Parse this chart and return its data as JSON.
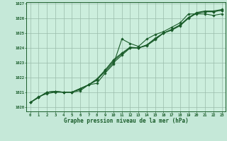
{
  "title": "Graphe pression niveau de la mer (hPa)",
  "background_color": "#c5e8d8",
  "plot_bg_color": "#cceedd",
  "grid_color": "#99bbaa",
  "line_color": "#1a5c2a",
  "marker_color": "#1a5c2a",
  "xlim": [
    -0.5,
    23.5
  ],
  "ylim": [
    1019.7,
    1027.1
  ],
  "yticks": [
    1020,
    1021,
    1022,
    1023,
    1024,
    1025,
    1026,
    1027
  ],
  "xticks": [
    0,
    1,
    2,
    3,
    4,
    5,
    6,
    7,
    8,
    9,
    10,
    11,
    12,
    13,
    14,
    15,
    16,
    17,
    18,
    19,
    20,
    21,
    22,
    23
  ],
  "series1": [
    1020.3,
    1020.7,
    1020.9,
    1021.0,
    1021.0,
    1021.0,
    1021.1,
    1021.5,
    1021.6,
    1022.3,
    1022.9,
    1024.6,
    1024.3,
    1024.1,
    1024.6,
    1024.9,
    1025.1,
    1025.4,
    1025.7,
    1026.3,
    1026.3,
    1026.3,
    1026.2,
    1026.3
  ],
  "series2": [
    1020.3,
    1020.65,
    1021.0,
    1021.05,
    1021.0,
    1021.0,
    1021.25,
    1021.5,
    1021.8,
    1022.5,
    1023.1,
    1023.6,
    1024.0,
    1024.0,
    1024.2,
    1024.65,
    1025.0,
    1025.25,
    1025.55,
    1026.05,
    1026.35,
    1026.45,
    1026.45,
    1026.55
  ],
  "series3": [
    1020.3,
    1020.65,
    1021.0,
    1021.05,
    1021.0,
    1021.0,
    1021.25,
    1021.5,
    1021.9,
    1022.5,
    1023.2,
    1023.65,
    1024.05,
    1024.0,
    1024.2,
    1024.6,
    1025.0,
    1025.25,
    1025.55,
    1026.05,
    1026.4,
    1026.5,
    1026.5,
    1026.6
  ],
  "series4": [
    1020.3,
    1020.65,
    1021.0,
    1021.05,
    1021.0,
    1021.0,
    1021.2,
    1021.5,
    1021.85,
    1022.4,
    1023.0,
    1023.5,
    1024.0,
    1024.0,
    1024.15,
    1024.55,
    1025.0,
    1025.2,
    1025.5,
    1026.0,
    1026.35,
    1026.45,
    1026.45,
    1026.55
  ]
}
